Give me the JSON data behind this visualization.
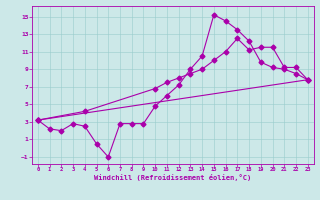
{
  "xlabel": "Windchill (Refroidissement éolien,°C)",
  "xlim": [
    -0.5,
    23.5
  ],
  "ylim": [
    -1.8,
    16.2
  ],
  "xticks": [
    0,
    1,
    2,
    3,
    4,
    5,
    6,
    7,
    8,
    9,
    10,
    11,
    12,
    13,
    14,
    15,
    16,
    17,
    18,
    19,
    20,
    21,
    22,
    23
  ],
  "yticks": [
    -1,
    1,
    3,
    5,
    7,
    9,
    11,
    13,
    15
  ],
  "background_color": "#cce8e8",
  "line_color": "#aa00aa",
  "grid_color": "#99cccc",
  "line1_x": [
    0,
    1,
    2,
    3,
    4,
    5,
    6,
    7,
    8,
    9,
    10,
    11,
    12,
    13,
    14,
    15,
    16,
    17,
    18,
    19,
    20,
    21,
    22,
    23
  ],
  "line1_y": [
    3.2,
    2.2,
    2.0,
    2.8,
    2.5,
    0.5,
    -1.0,
    2.8,
    2.8,
    2.8,
    4.8,
    6.0,
    7.2,
    9.0,
    10.5,
    15.2,
    14.5,
    13.5,
    12.2,
    9.8,
    9.2,
    9.0,
    8.5,
    7.8
  ],
  "line2_x": [
    0,
    4,
    10,
    11,
    12,
    13,
    14,
    15,
    16,
    17,
    18,
    19,
    20,
    21,
    22,
    23
  ],
  "line2_y": [
    3.2,
    4.2,
    6.8,
    7.5,
    8.0,
    8.5,
    9.0,
    10.0,
    11.0,
    12.5,
    11.2,
    11.5,
    11.5,
    9.2,
    9.2,
    7.8
  ],
  "line3_x": [
    0,
    23
  ],
  "line3_y": [
    3.2,
    7.8
  ]
}
